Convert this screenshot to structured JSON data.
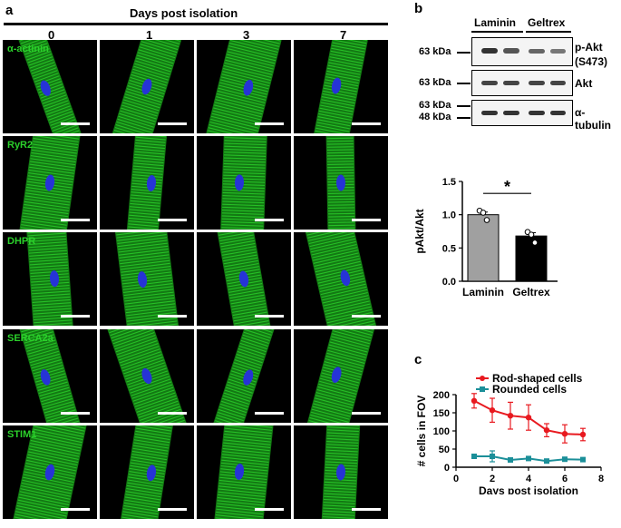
{
  "panel_a": {
    "letter": "a",
    "header": "Days post isolation",
    "days": [
      "0",
      "1",
      "3",
      "7"
    ],
    "rows": [
      {
        "label": "α-actinin"
      },
      {
        "label": "RyR2"
      },
      {
        "label": "DHPR"
      },
      {
        "label": "SERCA2a"
      },
      {
        "label": "STIM1"
      }
    ],
    "colors": {
      "cell_green": "#2bd12b",
      "nucleus_blue": "#2633d6",
      "scale_bar": "#ffffff"
    }
  },
  "panel_b": {
    "letter": "b",
    "columns": [
      "Laminin",
      "Geltrex"
    ],
    "blots": [
      {
        "marker": "63 kDa",
        "protein_lines": [
          "p-Akt",
          "(S473)"
        ]
      },
      {
        "marker": "63 kDa",
        "protein_lines": [
          "Akt"
        ]
      },
      {
        "marker_lines": [
          "63 kDa",
          "48 kDa"
        ],
        "protein_lines": [
          "α-tubulin"
        ]
      }
    ]
  },
  "chart_data": [
    {
      "type": "bar",
      "categories": [
        "Laminin",
        "Geltrex"
      ],
      "values": [
        1.0,
        0.68
      ],
      "errors": [
        0.04,
        0.05
      ],
      "points": [
        [
          1.06,
          1.03,
          0.92
        ],
        [
          0.74,
          0.7,
          0.58
        ]
      ],
      "colors": [
        "#a0a0a0",
        "#000000"
      ],
      "ylabel": "pAkt/Akt",
      "ylim": [
        0,
        1.5
      ],
      "yticks": [
        "0.0",
        "0.5",
        "1.0",
        "1.5"
      ],
      "significance": "*"
    },
    {
      "type": "line",
      "panel_letter": "c",
      "xlabel": "Days post isolation",
      "ylabel": "# cells in FOV",
      "xlim": [
        0,
        8
      ],
      "ylim": [
        0,
        200
      ],
      "xticks": [
        "0",
        "2",
        "4",
        "6",
        "8"
      ],
      "yticks": [
        "0",
        "50",
        "100",
        "150",
        "200"
      ],
      "legend_position": "top",
      "series": [
        {
          "name": "Rod-shaped cells",
          "color": "#e8191f",
          "x": [
            1,
            2,
            3,
            4,
            5,
            6,
            7
          ],
          "y": [
            183,
            157,
            142,
            137,
            102,
            92,
            90
          ],
          "err": [
            20,
            33,
            37,
            35,
            18,
            25,
            17
          ]
        },
        {
          "name": "Rounded cells",
          "color": "#1b8f99",
          "x": [
            1,
            2,
            3,
            4,
            5,
            6,
            7
          ],
          "y": [
            30,
            30,
            20,
            24,
            17,
            22,
            21
          ],
          "err": [
            6,
            15,
            4,
            3,
            3,
            4,
            3
          ]
        }
      ]
    }
  ]
}
